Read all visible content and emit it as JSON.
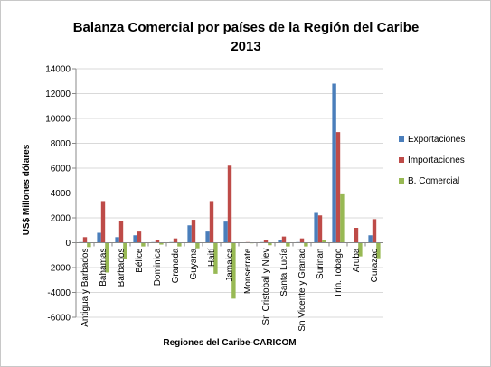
{
  "chart_data": {
    "type": "bar",
    "title": "Balanza Comercial  por países de la Región del Caribe",
    "subtitle": "2013",
    "xlabel": "Regiones del Caribe-CARICOM",
    "ylabel": "US$ Millones dólares",
    "ylim": [
      -6000,
      14000
    ],
    "y_ticks": [
      "14000",
      "12000",
      "10000",
      "8000",
      "6000",
      "4000",
      "2000",
      "0",
      "-2000",
      "-4000",
      "-6000"
    ],
    "grid": true,
    "legend_position": "right",
    "categories": [
      "Antigua y Barbados",
      "Bahamas",
      "Barbados",
      "Bélice",
      "Dominica",
      "Granada",
      "Guyana",
      "Haití",
      "Jamaica",
      "Monserrate",
      "Sn Cristobal y Niev",
      "Santa Lucía",
      "Sn Vicente y Granad",
      "Surinan",
      "Trin. Tobago",
      "Aruba",
      "Curazao"
    ],
    "series": [
      {
        "name": "Exportaciones",
        "color": "#4a7ebb",
        "values": [
          50,
          800,
          450,
          600,
          50,
          50,
          1400,
          900,
          1700,
          0,
          50,
          200,
          50,
          2400,
          12800,
          0,
          600
        ]
      },
      {
        "name": "Importaciones",
        "color": "#be4b48",
        "values": [
          450,
          3350,
          1750,
          900,
          200,
          350,
          1850,
          3350,
          6200,
          50,
          250,
          500,
          350,
          2200,
          8900,
          1200,
          1900
        ]
      },
      {
        "name": "B. Comercial",
        "color": "#98b954",
        "values": [
          -350,
          -2400,
          -1300,
          -300,
          -150,
          -300,
          -450,
          -2500,
          -4500,
          -50,
          -200,
          -300,
          -300,
          200,
          3900,
          -1100,
          -1250
        ]
      }
    ]
  }
}
